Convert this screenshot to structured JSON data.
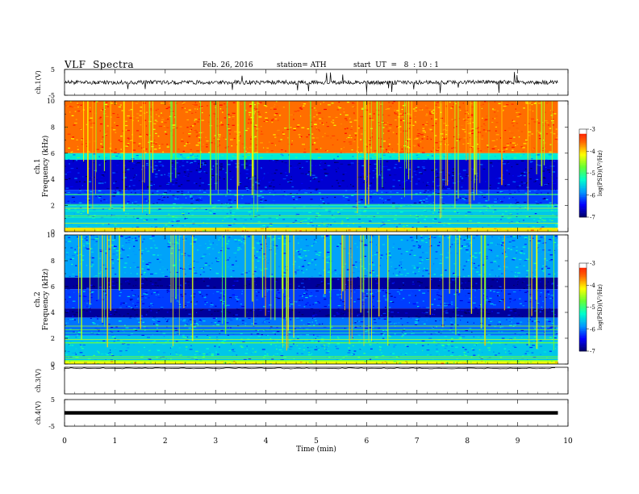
{
  "header": {
    "title": "VLF  Spectra",
    "date": "Feb. 26, 2016",
    "station": "station= ATH",
    "start": "start  UT  =   8  : 10 : 1"
  },
  "chart_data": [
    {
      "type": "line",
      "panel": "ch.1 waveform",
      "ylabel": "ch.1(V)",
      "ylim": [
        -5,
        5
      ],
      "yticks": [
        "5",
        "-5"
      ],
      "xlim": [
        0,
        10
      ],
      "description_values": {
        "baseline_V": 0,
        "typical_spike_V": [
          -3.5,
          3.5
        ]
      }
    },
    {
      "type": "heatmap",
      "panel": "ch.1 spectrogram",
      "ylabel": "ch.1\nFrequency  (kHz)",
      "ylim": [
        0,
        10
      ],
      "yticks": [
        "0",
        "2",
        "4",
        "6",
        "8",
        "10"
      ],
      "xlim": [
        0,
        10
      ],
      "colorbar": {
        "label": "log(PSD)(V²/Hz)",
        "range": [
          -7,
          -3
        ],
        "ticks": [
          "-3",
          "-4",
          "-5",
          "-6",
          "-7"
        ]
      },
      "bands": [
        {
          "f": [
            6,
            10
          ],
          "logpsd": -3.6
        },
        {
          "f": [
            5.5,
            6
          ],
          "logpsd": -5.4
        },
        {
          "f": [
            3.2,
            5.5
          ],
          "logpsd": -6.6
        },
        {
          "f": [
            2,
            3.2
          ],
          "logpsd": -6.2
        },
        {
          "f": [
            0.3,
            2
          ],
          "logpsd": -5.6
        },
        {
          "f": [
            0,
            0.3
          ],
          "logpsd": -4
        }
      ]
    },
    {
      "type": "heatmap",
      "panel": "ch.2 spectrogram",
      "ylabel": "ch.2\nFrequency  (kHz)",
      "ylim": [
        0,
        10
      ],
      "yticks": [
        "0",
        "2",
        "4",
        "6",
        "8",
        "10"
      ],
      "xlim": [
        0,
        10
      ],
      "colorbar": {
        "label": "log(PSD)(V²/Hz)",
        "range": [
          -7,
          -3
        ],
        "ticks": [
          "-3",
          "-4",
          "-5",
          "-6",
          "-7"
        ]
      },
      "bands": [
        {
          "f": [
            6.7,
            10
          ],
          "logpsd": -5.8
        },
        {
          "f": [
            5.8,
            6.7
          ],
          "logpsd": -6.8
        },
        {
          "f": [
            4.3,
            5.8
          ],
          "logpsd": -6.2
        },
        {
          "f": [
            3.6,
            4.3
          ],
          "logpsd": -6.8
        },
        {
          "f": [
            2.2,
            3.6
          ],
          "logpsd": -6.0
        },
        {
          "f": [
            0.3,
            2.2
          ],
          "logpsd": -5.6
        },
        {
          "f": [
            0,
            0.3
          ],
          "logpsd": -4.2
        }
      ]
    },
    {
      "type": "line",
      "panel": "ch.3 waveform",
      "ylabel": "ch.3(V)",
      "ylim": [
        -5,
        5
      ],
      "yticks": [
        "5"
      ],
      "xlim": [
        0,
        10
      ],
      "description_values": {
        "level_V": 4.8
      }
    },
    {
      "type": "line",
      "panel": "ch.4 waveform",
      "ylabel": "ch.4(V)",
      "ylim": [
        -5,
        5
      ],
      "yticks": [
        "5",
        "-5"
      ],
      "xlim": [
        0,
        10
      ],
      "description_values": {
        "level_V": 0
      }
    }
  ],
  "xaxis": {
    "label": "Time  (min)",
    "ticks": [
      "0",
      "1",
      "2",
      "3",
      "4",
      "5",
      "6",
      "7",
      "8",
      "9",
      "10"
    ]
  },
  "colors": {
    "psd_scale": [
      "#000066",
      "#0000ff",
      "#0099ff",
      "#00ffcc",
      "#66ff33",
      "#ffff00",
      "#ff6600",
      "#ff0000",
      "#ffffff"
    ],
    "trace": "#000000"
  }
}
